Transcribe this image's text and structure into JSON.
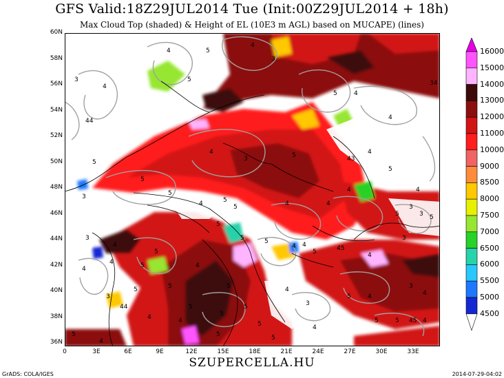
{
  "title": "GFS Valid:18Z29JUL2014 Tue (Init:00Z29JUL2014 + 18h)",
  "subtitle": "Max Cloud Top (shaded) & Height of EL (10E3 m AGL) based on MUCAPE) (lines)",
  "lat_labels": [
    "60N",
    "58N",
    "56N",
    "54N",
    "52N",
    "50N",
    "48N",
    "46N",
    "44N",
    "42N",
    "40N",
    "38N",
    "36N"
  ],
  "lon_labels": [
    "0",
    "3E",
    "6E",
    "9E",
    "12E",
    "15E",
    "18E",
    "21E",
    "24E",
    "27E",
    "30E",
    "33E"
  ],
  "legend": [
    {
      "label": "16000",
      "color": "#e600e6"
    },
    {
      "label": "15000",
      "color": "#ff55ff"
    },
    {
      "label": "14000",
      "color": "#ffb4ff"
    },
    {
      "label": "13000",
      "color": "#3c0a0a"
    },
    {
      "label": "12000",
      "color": "#8c0f0f"
    },
    {
      "label": "11000",
      "color": "#d21414"
    },
    {
      "label": "10000",
      "color": "#ff1e1e"
    },
    {
      "label": "9000",
      "color": "#f06464"
    },
    {
      "label": "8500",
      "color": "#ff8c3c"
    },
    {
      "label": "8000",
      "color": "#ffc800"
    },
    {
      "label": "7500",
      "color": "#e6f000"
    },
    {
      "label": "7000",
      "color": "#96e632"
    },
    {
      "label": "6500",
      "color": "#28d228"
    },
    {
      "label": "6000",
      "color": "#28d2aa"
    },
    {
      "label": "5500",
      "color": "#28c8ff"
    },
    {
      "label": "5000",
      "color": "#1e78ff"
    },
    {
      "label": "4500",
      "color": "#1428d2"
    }
  ],
  "footer": {
    "site": "SZUPERCELLA.HU",
    "left": "GrADS: COLA/IGES",
    "right": "2014-07-29-04:02"
  },
  "colors": {
    "land_white": "#ffffff",
    "contour": "#a0a0a0",
    "border": "#000000"
  }
}
